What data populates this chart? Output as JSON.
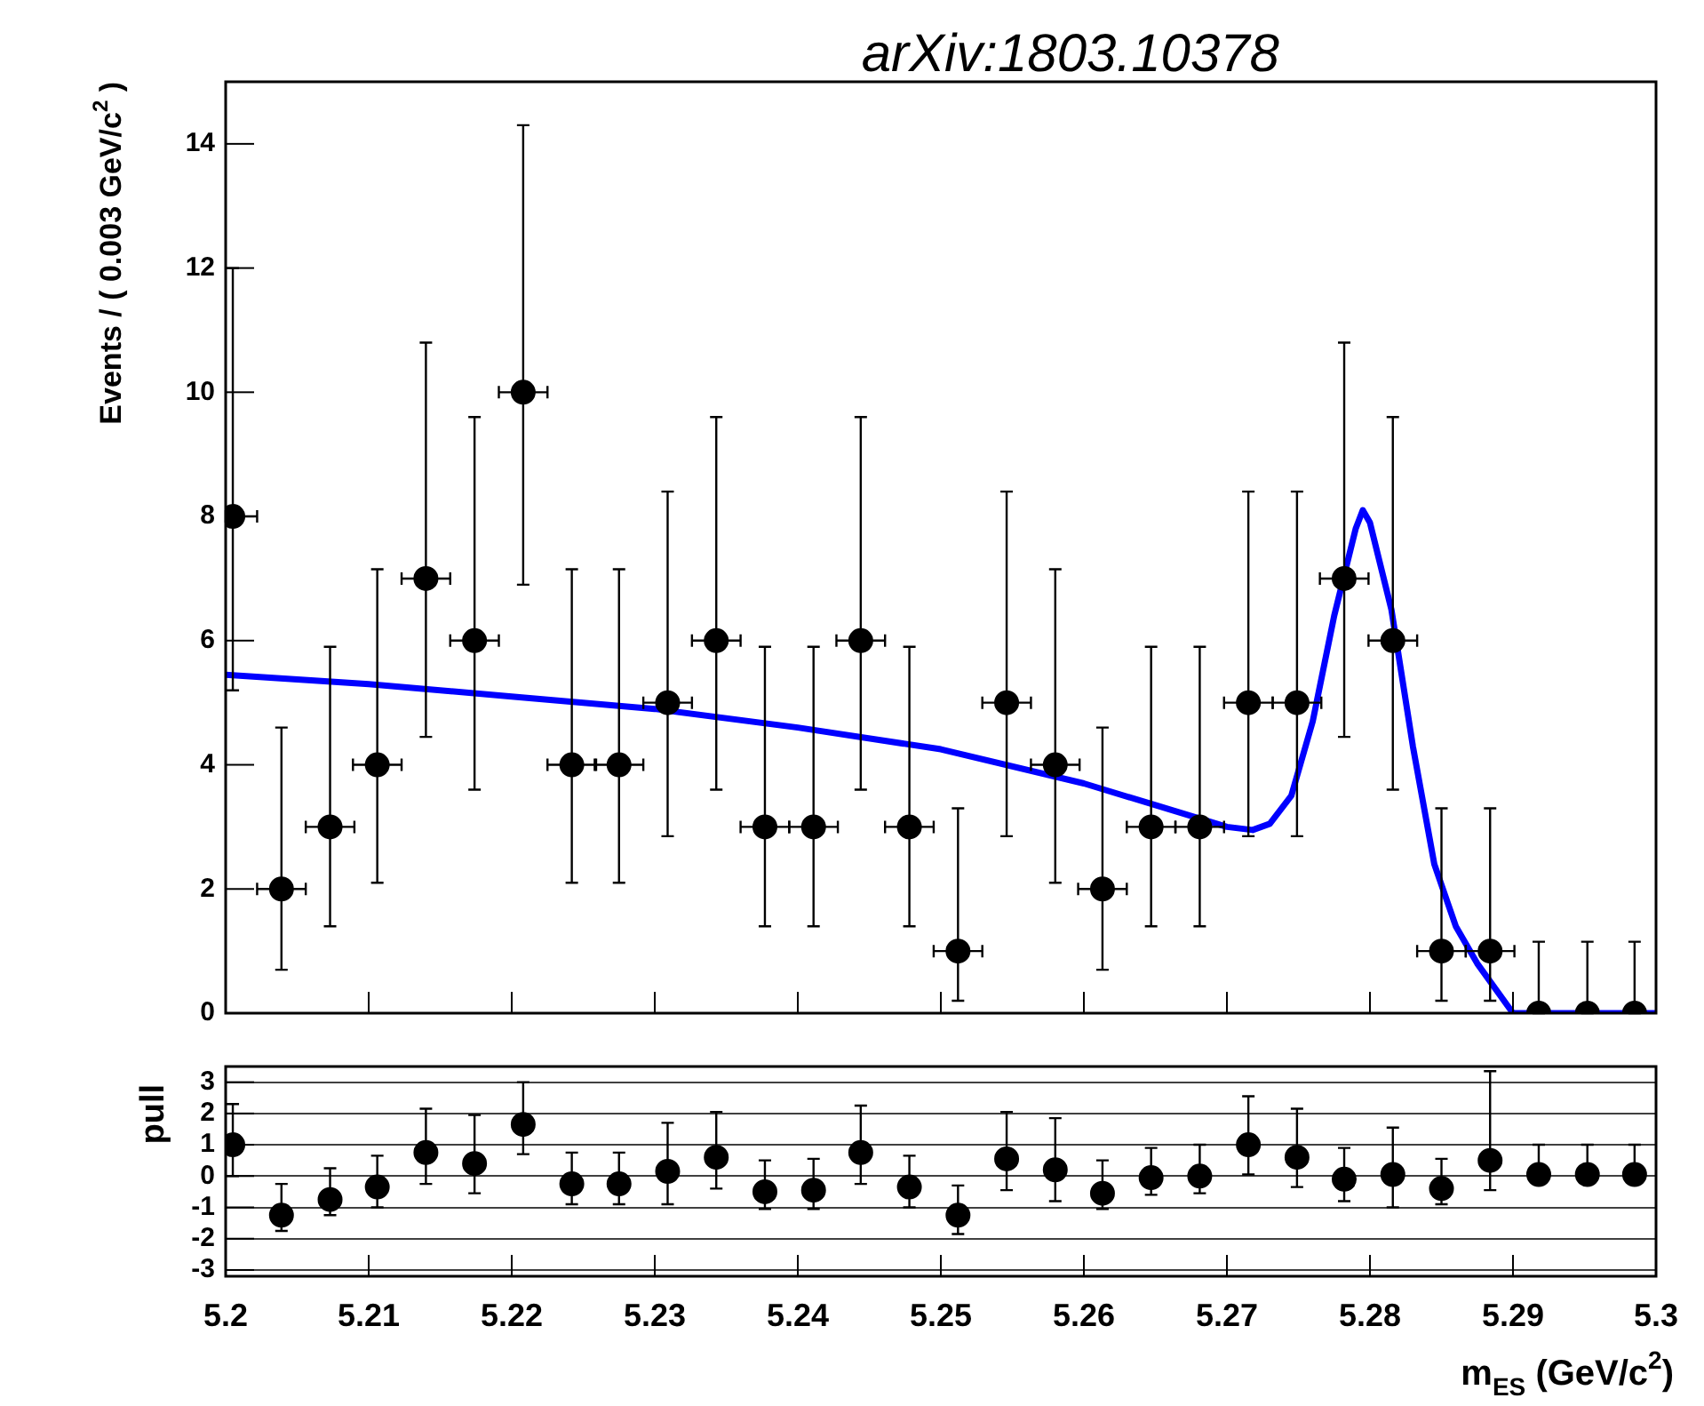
{
  "chart_data": [
    {
      "type": "scatter",
      "ylabel": "Events / ( 0.003 GeV/c$^{2}$ )",
      "annotations": [
        "arXiv:1803.10378"
      ],
      "xlim": [
        5.2,
        5.3
      ],
      "xticks": [
        5.2,
        5.21,
        5.22,
        5.23,
        5.24,
        5.25,
        5.26,
        5.27,
        5.28,
        5.29,
        5.3
      ],
      "ylim": [
        0,
        15
      ],
      "yticks": [
        0,
        2,
        4,
        6,
        8,
        10,
        12,
        14
      ],
      "tick_labels": "y",
      "marker": "circle",
      "legend": false,
      "x": [
        5.2005,
        5.2039,
        5.2073,
        5.2106,
        5.214,
        5.2174,
        5.2208,
        5.2242,
        5.2275,
        5.2309,
        5.2343,
        5.2377,
        5.2411,
        5.2444,
        5.2478,
        5.2512,
        5.2546,
        5.258,
        5.2613,
        5.2647,
        5.2681,
        5.2715,
        5.2749,
        5.2782,
        5.2816,
        5.285,
        5.2884,
        5.2918,
        5.2952,
        5.2985
      ],
      "series": [
        {
          "color": "#000000",
          "values": [
            8,
            2,
            3,
            4,
            7,
            6,
            10,
            4,
            4,
            5,
            6,
            3,
            3,
            6,
            3,
            1,
            5,
            4,
            2,
            3,
            3,
            5,
            5,
            7,
            6,
            1,
            1,
            0,
            0,
            0
          ],
          "errors": [
            [
              5.2,
              12
            ],
            [
              0.7,
              4.6
            ],
            [
              1.4,
              5.9
            ],
            [
              2.1,
              7.15
            ],
            [
              4.45,
              10.8
            ],
            [
              3.6,
              9.6
            ],
            [
              6.9,
              14.3
            ],
            [
              2.1,
              7.15
            ],
            [
              2.1,
              7.15
            ],
            [
              2.85,
              8.4
            ],
            [
              3.6,
              9.6
            ],
            [
              1.4,
              5.9
            ],
            [
              1.4,
              5.9
            ],
            [
              3.6,
              9.6
            ],
            [
              1.4,
              5.9
            ],
            [
              0.2,
              3.3
            ],
            [
              2.85,
              8.4
            ],
            [
              2.1,
              7.15
            ],
            [
              0.7,
              4.6
            ],
            [
              1.4,
              5.9
            ],
            [
              1.4,
              5.9
            ],
            [
              2.85,
              8.4
            ],
            [
              2.85,
              8.4
            ],
            [
              4.45,
              10.8
            ],
            [
              3.6,
              9.6
            ],
            [
              0.2,
              3.3
            ],
            [
              0.2,
              3.3
            ],
            [
              0,
              1.15
            ],
            [
              0,
              1.15
            ],
            [
              0,
              1.15
            ]
          ],
          "xerrors": [
            [
              5.2,
              5.2022
            ],
            0.0017,
            0.0017,
            0.0017,
            0.0017,
            0.0017,
            0.0017,
            0.0017,
            0.0017,
            0.0017,
            0.0017,
            0.0017,
            0.0017,
            0.0017,
            0.0017,
            0.0017,
            0.0017,
            0.0017,
            0.0017,
            0.0017,
            0.0017,
            0.0017,
            0.0017,
            0.0017,
            0.0017,
            0.0017,
            0.0017,
            null,
            null,
            null
          ]
        },
        {
          "type": "line",
          "color": "#0000ff",
          "marker": "none",
          "x": [
            5.2,
            5.21,
            5.22,
            5.23,
            5.24,
            5.25,
            5.26,
            5.265,
            5.27,
            5.2718,
            5.273,
            5.2745,
            5.276,
            5.2775,
            5.279,
            5.2795,
            5.28,
            5.2815,
            5.283,
            5.2845,
            5.286,
            5.2875,
            5.29,
            5.3
          ],
          "values": [
            5.45,
            5.3,
            5.1,
            4.9,
            4.6,
            4.25,
            3.7,
            3.35,
            3.0,
            2.95,
            3.05,
            3.5,
            4.7,
            6.4,
            7.8,
            8.1,
            7.9,
            6.5,
            4.3,
            2.4,
            1.4,
            0.8,
            0,
            0
          ]
        }
      ]
    },
    {
      "type": "scatter",
      "xlabel": "m$_{ES}$ (GeV/c$^{2}$)",
      "ylabel": "pull",
      "xlim": [
        5.2,
        5.3
      ],
      "xticks": [
        5.2,
        5.21,
        5.22,
        5.23,
        5.24,
        5.25,
        5.26,
        5.27,
        5.28,
        5.29,
        5.3
      ],
      "ylim": [
        -3.2,
        3.5
      ],
      "yticks": [
        -3,
        -2,
        -1,
        0,
        1,
        2,
        3
      ],
      "grid": "y",
      "marker": "circle",
      "legend": false,
      "x": [
        5.2005,
        5.2039,
        5.2073,
        5.2106,
        5.214,
        5.2174,
        5.2208,
        5.2242,
        5.2275,
        5.2309,
        5.2343,
        5.2377,
        5.2411,
        5.2444,
        5.2478,
        5.2512,
        5.2546,
        5.258,
        5.2613,
        5.2647,
        5.2681,
        5.2715,
        5.2749,
        5.2782,
        5.2816,
        5.285,
        5.2884,
        5.2918,
        5.2952,
        5.2985
      ],
      "series": [
        {
          "color": "#000000",
          "values": [
            1.0,
            -1.25,
            -0.75,
            -0.35,
            0.75,
            0.4,
            1.65,
            -0.25,
            -0.25,
            0.15,
            0.6,
            -0.5,
            -0.45,
            0.75,
            -0.35,
            -1.25,
            0.55,
            0.2,
            -0.55,
            -0.05,
            0.0,
            1.0,
            0.6,
            -0.1,
            0.05,
            -0.4,
            0.5,
            0.05,
            0.05,
            0.05
          ],
          "errors": [
            [
              0,
              2.3
            ],
            [
              -1.75,
              -0.25
            ],
            [
              -1.25,
              0.25
            ],
            [
              -1.0,
              0.65
            ],
            [
              -0.25,
              2.15
            ],
            [
              -0.55,
              1.95
            ],
            [
              0.7,
              3.0
            ],
            [
              -0.9,
              0.75
            ],
            [
              -0.9,
              0.75
            ],
            [
              -0.9,
              1.7
            ],
            [
              -0.4,
              2.05
            ],
            [
              -1.05,
              0.5
            ],
            [
              -1.05,
              0.55
            ],
            [
              -0.25,
              2.25
            ],
            [
              -1.0,
              0.65
            ],
            [
              -1.85,
              -0.3
            ],
            [
              -0.45,
              2.05
            ],
            [
              -0.8,
              1.85
            ],
            [
              -1.05,
              0.5
            ],
            [
              -0.6,
              0.9
            ],
            [
              -0.55,
              1.0
            ],
            [
              0.05,
              2.55
            ],
            [
              -0.35,
              2.15
            ],
            [
              -0.8,
              0.9
            ],
            [
              -1.0,
              1.55
            ],
            [
              -0.9,
              0.55
            ],
            [
              -0.45,
              3.35
            ],
            [
              0.05,
              1.0
            ],
            [
              0.05,
              1.0
            ],
            [
              0.05,
              1.0
            ]
          ]
        }
      ]
    }
  ]
}
